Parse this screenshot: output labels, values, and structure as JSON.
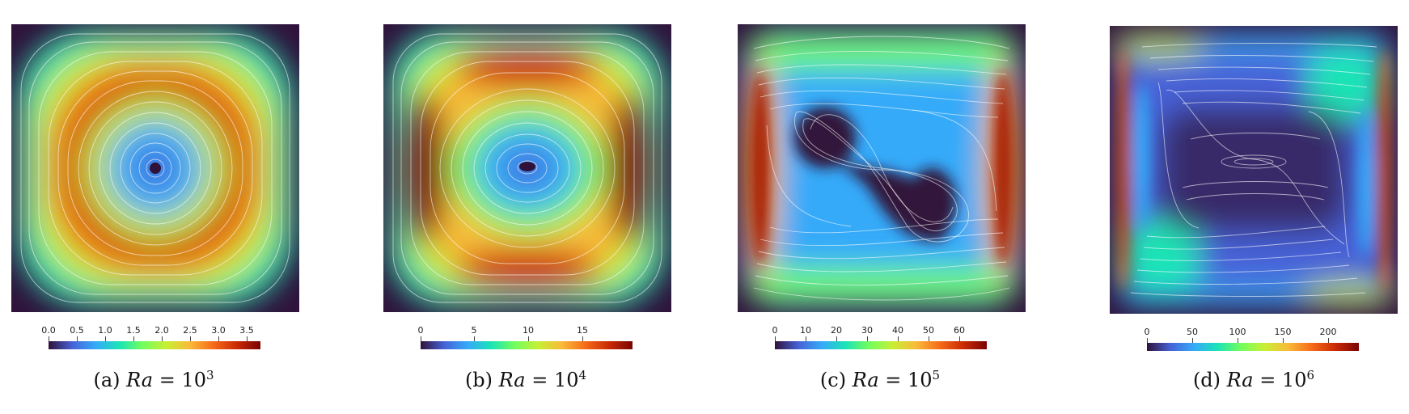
{
  "figure": {
    "panels": [
      {
        "id": "a",
        "caption_prefix": "(a)",
        "caption_var": "Ra",
        "caption_eq": " = 10",
        "caption_exp": "3",
        "colorbar_ticks": [
          "0.0",
          "0.5",
          "1.0",
          "1.5",
          "2.0",
          "2.5",
          "3.0",
          "3.5"
        ],
        "colorbar_values": [
          0.0,
          0.5,
          1.0,
          1.5,
          2.0,
          2.5,
          3.0,
          3.5
        ],
        "colorbar_range": [
          0,
          3.75
        ]
      },
      {
        "id": "b",
        "caption_prefix": "(b)",
        "caption_var": "Ra",
        "caption_eq": " = 10",
        "caption_exp": "4",
        "colorbar_ticks": [
          "0",
          "5",
          "10",
          "15"
        ],
        "colorbar_values": [
          0,
          5,
          10,
          15
        ],
        "colorbar_range": [
          0,
          20
        ]
      },
      {
        "id": "c",
        "caption_prefix": "(c)",
        "caption_var": "Ra",
        "caption_eq": " = 10",
        "caption_exp": "5",
        "colorbar_ticks": [
          "0",
          "10",
          "20",
          "30",
          "40",
          "50",
          "60"
        ],
        "colorbar_values": [
          0,
          10,
          20,
          30,
          40,
          50,
          60
        ],
        "colorbar_range": [
          0,
          69
        ]
      },
      {
        "id": "d",
        "caption_prefix": "(d)",
        "caption_var": "Ra",
        "caption_eq": " = 10",
        "caption_exp": "6",
        "colorbar_ticks": [
          "0",
          "50",
          "100",
          "150",
          "200"
        ],
        "colorbar_values": [
          0,
          50,
          100,
          150,
          200
        ],
        "colorbar_range": [
          0,
          235
        ]
      }
    ],
    "colormap": [
      "#30123b",
      "#4662d7",
      "#36aaf9",
      "#1ae4b6",
      "#72fe5e",
      "#c7ef34",
      "#faba39",
      "#f66b19",
      "#ca2a04",
      "#7a0403"
    ]
  }
}
